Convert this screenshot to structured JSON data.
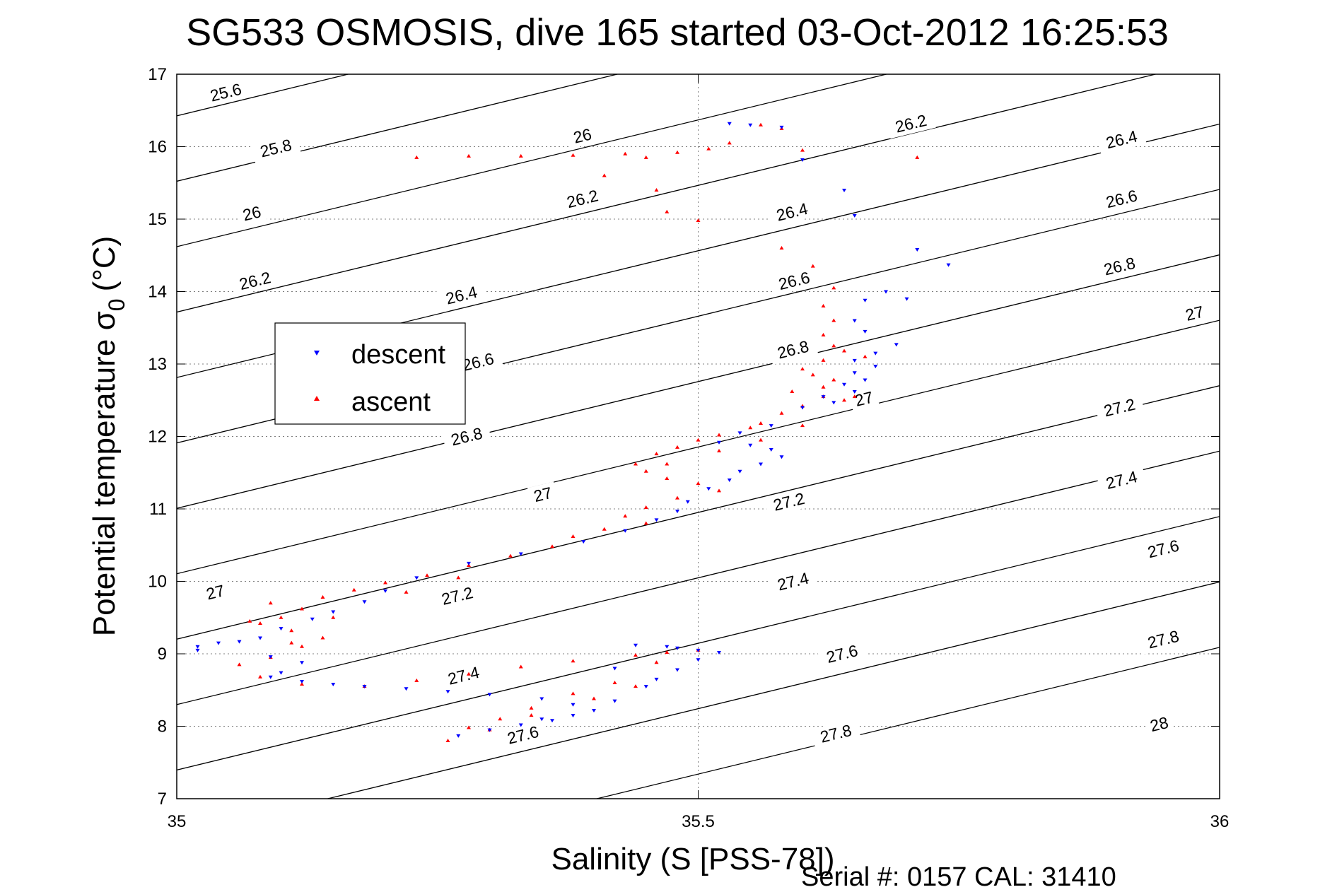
{
  "figure": {
    "title": "SG533 OSMOSIS, dive 165 started 03-Oct-2012 16:25:53",
    "footer": "Serial #: 0157  CAL: 31410"
  },
  "colors": {
    "descent": "#0000ff",
    "ascent": "#ff0000",
    "contour": "#000000",
    "grid": "#7f7f7f"
  },
  "chart_data": {
    "type": "scatter",
    "title": "SG533 OSMOSIS, dive 165 started 03-Oct-2012 16:25:53",
    "xlabel": "Salinity (S [PSS-78])",
    "ylabel": "Potential temperature σ",
    "ylabel_subscript": "0",
    "ylabel_unit": "(°C)",
    "xlim": [
      35,
      36
    ],
    "ylim": [
      7,
      17
    ],
    "xticks": [
      35,
      35.5,
      36
    ],
    "xtick_labels": [
      "35",
      "35.5",
      "36"
    ],
    "yticks": [
      7,
      8,
      9,
      10,
      11,
      12,
      13,
      14,
      15,
      16,
      17
    ],
    "ytick_labels": [
      "7",
      "8",
      "9",
      "10",
      "11",
      "12",
      "13",
      "14",
      "15",
      "16",
      "17"
    ],
    "grid": "dotted, at major ticks",
    "legend": {
      "position": "left-middle",
      "entries": [
        "descent",
        "ascent"
      ]
    },
    "series": [
      {
        "name": "descent",
        "marker": "triangle-down",
        "color": "#0000ff",
        "points": [
          [
            35.53,
            16.32
          ],
          [
            35.55,
            16.3
          ],
          [
            35.58,
            16.27
          ],
          [
            35.6,
            15.82
          ],
          [
            35.64,
            15.4
          ],
          [
            35.65,
            15.05
          ],
          [
            35.71,
            14.58
          ],
          [
            35.74,
            14.37
          ],
          [
            35.68,
            14.0
          ],
          [
            35.66,
            13.88
          ],
          [
            35.7,
            13.9
          ],
          [
            35.65,
            13.6
          ],
          [
            35.66,
            13.45
          ],
          [
            35.69,
            13.27
          ],
          [
            35.67,
            13.15
          ],
          [
            35.65,
            13.05
          ],
          [
            35.67,
            12.97
          ],
          [
            35.65,
            12.88
          ],
          [
            35.66,
            12.78
          ],
          [
            35.64,
            12.72
          ],
          [
            35.65,
            12.62
          ],
          [
            35.62,
            12.55
          ],
          [
            35.63,
            12.47
          ],
          [
            35.6,
            12.4
          ],
          [
            35.57,
            12.15
          ],
          [
            35.54,
            12.05
          ],
          [
            35.52,
            11.92
          ],
          [
            35.55,
            11.88
          ],
          [
            35.57,
            11.82
          ],
          [
            35.58,
            11.72
          ],
          [
            35.56,
            11.62
          ],
          [
            35.54,
            11.52
          ],
          [
            35.53,
            11.4
          ],
          [
            35.51,
            11.28
          ],
          [
            35.49,
            11.1
          ],
          [
            35.48,
            10.97
          ],
          [
            35.46,
            10.85
          ],
          [
            35.43,
            10.7
          ],
          [
            35.39,
            10.55
          ],
          [
            35.33,
            10.38
          ],
          [
            35.28,
            10.25
          ],
          [
            35.23,
            10.05
          ],
          [
            35.2,
            9.87
          ],
          [
            35.18,
            9.72
          ],
          [
            35.15,
            9.58
          ],
          [
            35.13,
            9.48
          ],
          [
            35.1,
            9.35
          ],
          [
            35.08,
            9.22
          ],
          [
            35.04,
            9.15
          ],
          [
            35.02,
            9.05
          ],
          [
            35.02,
            9.1
          ],
          [
            35.06,
            9.17
          ],
          [
            35.09,
            8.96
          ],
          [
            35.12,
            8.88
          ],
          [
            35.1,
            8.74
          ],
          [
            35.09,
            8.68
          ],
          [
            35.12,
            8.62
          ],
          [
            35.15,
            8.58
          ],
          [
            35.18,
            8.55
          ],
          [
            35.22,
            8.52
          ],
          [
            35.26,
            8.48
          ],
          [
            35.3,
            8.44
          ],
          [
            35.35,
            8.38
          ],
          [
            35.38,
            8.3
          ],
          [
            35.4,
            8.22
          ],
          [
            35.38,
            8.15
          ],
          [
            35.36,
            8.08
          ],
          [
            35.33,
            8.02
          ],
          [
            35.3,
            7.95
          ],
          [
            35.27,
            7.87
          ],
          [
            35.35,
            8.1
          ],
          [
            35.42,
            8.35
          ],
          [
            35.45,
            8.55
          ],
          [
            35.48,
            8.78
          ],
          [
            35.5,
            8.92
          ],
          [
            35.52,
            9.02
          ],
          [
            35.48,
            9.08
          ],
          [
            35.44,
            9.12
          ],
          [
            35.47,
            9.1
          ],
          [
            35.5,
            9.05
          ],
          [
            35.42,
            8.8
          ],
          [
            35.46,
            8.65
          ]
        ]
      },
      {
        "name": "ascent",
        "marker": "triangle-up",
        "color": "#ff0000",
        "points": [
          [
            35.56,
            16.3
          ],
          [
            35.58,
            16.25
          ],
          [
            35.53,
            16.05
          ],
          [
            35.51,
            15.97
          ],
          [
            35.48,
            15.92
          ],
          [
            35.43,
            15.9
          ],
          [
            35.38,
            15.88
          ],
          [
            35.33,
            15.87
          ],
          [
            35.28,
            15.87
          ],
          [
            35.23,
            15.85
          ],
          [
            35.45,
            15.85
          ],
          [
            35.41,
            15.6
          ],
          [
            35.46,
            15.4
          ],
          [
            35.47,
            15.1
          ],
          [
            35.5,
            14.98
          ],
          [
            35.6,
            15.95
          ],
          [
            35.71,
            15.85
          ],
          [
            35.58,
            14.6
          ],
          [
            35.61,
            14.35
          ],
          [
            35.63,
            14.05
          ],
          [
            35.62,
            13.8
          ],
          [
            35.63,
            13.6
          ],
          [
            35.62,
            13.4
          ],
          [
            35.63,
            13.25
          ],
          [
            35.64,
            13.18
          ],
          [
            35.62,
            13.05
          ],
          [
            35.6,
            12.93
          ],
          [
            35.61,
            12.85
          ],
          [
            35.63,
            12.78
          ],
          [
            35.62,
            12.68
          ],
          [
            35.59,
            12.62
          ],
          [
            35.62,
            12.55
          ],
          [
            35.64,
            12.5
          ],
          [
            35.6,
            12.42
          ],
          [
            35.58,
            12.32
          ],
          [
            35.56,
            12.18
          ],
          [
            35.55,
            12.12
          ],
          [
            35.52,
            12.02
          ],
          [
            35.5,
            11.95
          ],
          [
            35.48,
            11.85
          ],
          [
            35.46,
            11.76
          ],
          [
            35.47,
            11.62
          ],
          [
            35.45,
            11.52
          ],
          [
            35.47,
            11.42
          ],
          [
            35.5,
            11.35
          ],
          [
            35.52,
            11.25
          ],
          [
            35.48,
            11.15
          ],
          [
            35.45,
            11.02
          ],
          [
            35.43,
            10.9
          ],
          [
            35.45,
            10.8
          ],
          [
            35.41,
            10.72
          ],
          [
            35.38,
            10.62
          ],
          [
            35.36,
            10.48
          ],
          [
            35.32,
            10.35
          ],
          [
            35.28,
            10.22
          ],
          [
            35.24,
            10.08
          ],
          [
            35.2,
            9.98
          ],
          [
            35.17,
            9.88
          ],
          [
            35.14,
            9.78
          ],
          [
            35.12,
            9.62
          ],
          [
            35.1,
            9.5
          ],
          [
            35.08,
            9.42
          ],
          [
            35.11,
            9.32
          ],
          [
            35.14,
            9.22
          ],
          [
            35.12,
            9.1
          ],
          [
            35.09,
            8.95
          ],
          [
            35.06,
            8.85
          ],
          [
            35.08,
            8.68
          ],
          [
            35.12,
            8.58
          ],
          [
            35.18,
            8.55
          ],
          [
            35.23,
            8.63
          ],
          [
            35.28,
            8.72
          ],
          [
            35.33,
            8.82
          ],
          [
            35.38,
            8.9
          ],
          [
            35.44,
            8.98
          ],
          [
            35.47,
            9.02
          ],
          [
            35.5,
            9.05
          ],
          [
            35.46,
            8.88
          ],
          [
            35.42,
            8.6
          ],
          [
            35.38,
            8.45
          ],
          [
            35.34,
            8.25
          ],
          [
            35.31,
            8.1
          ],
          [
            35.28,
            7.98
          ],
          [
            35.26,
            7.8
          ],
          [
            35.3,
            7.95
          ],
          [
            35.34,
            8.15
          ],
          [
            35.4,
            8.38
          ],
          [
            35.44,
            8.55
          ],
          [
            35.44,
            11.62
          ],
          [
            35.52,
            11.8
          ],
          [
            35.56,
            11.95
          ],
          [
            35.6,
            12.15
          ],
          [
            35.65,
            12.55
          ],
          [
            35.66,
            13.1
          ],
          [
            35.09,
            9.7
          ],
          [
            35.15,
            9.5
          ],
          [
            35.11,
            9.15
          ],
          [
            35.07,
            9.45
          ],
          [
            35.27,
            10.05
          ],
          [
            35.22,
            9.85
          ]
        ]
      }
    ],
    "contours": {
      "type": "sigma0 isopycnals",
      "levels": [
        25.6,
        25.8,
        26,
        26.2,
        26.4,
        26.6,
        26.8,
        27,
        27.2,
        27.4,
        27.6,
        27.8,
        28
      ],
      "labels": [
        {
          "text": "25.6",
          "x": 35.047,
          "y": 16.75
        },
        {
          "text": "25.8",
          "x": 35.095,
          "y": 15.98
        },
        {
          "text": "26",
          "x": 35.072,
          "y": 15.08
        },
        {
          "text": "26.2",
          "x": 35.075,
          "y": 14.15
        },
        {
          "text": "26",
          "x": 35.389,
          "y": 16.15
        },
        {
          "text": "26.2",
          "x": 35.389,
          "y": 15.28
        },
        {
          "text": "26.4",
          "x": 35.273,
          "y": 13.95
        },
        {
          "text": "26.6",
          "x": 35.289,
          "y": 13.03
        },
        {
          "text": "26.8",
          "x": 35.278,
          "y": 12.0
        },
        {
          "text": "27",
          "x": 35.351,
          "y": 11.2
        },
        {
          "text": "27",
          "x": 35.037,
          "y": 9.85
        },
        {
          "text": "27.2",
          "x": 35.269,
          "y": 9.8
        },
        {
          "text": "27.4",
          "x": 35.275,
          "y": 8.7
        },
        {
          "text": "27.6",
          "x": 35.332,
          "y": 7.88
        },
        {
          "text": "26.2",
          "x": 35.704,
          "y": 16.32
        },
        {
          "text": "26.4",
          "x": 35.59,
          "y": 15.1
        },
        {
          "text": "26.6",
          "x": 35.592,
          "y": 14.15
        },
        {
          "text": "26.8",
          "x": 35.591,
          "y": 13.2
        },
        {
          "text": "27",
          "x": 35.659,
          "y": 12.52
        },
        {
          "text": "27.2",
          "x": 35.587,
          "y": 11.1
        },
        {
          "text": "27.4",
          "x": 35.591,
          "y": 10.0
        },
        {
          "text": "27.6",
          "x": 35.638,
          "y": 9.0
        },
        {
          "text": "27.8",
          "x": 35.632,
          "y": 7.9
        },
        {
          "text": "26.4",
          "x": 35.906,
          "y": 16.1
        },
        {
          "text": "26.6",
          "x": 35.906,
          "y": 15.28
        },
        {
          "text": "26.8",
          "x": 35.904,
          "y": 14.35
        },
        {
          "text": "27",
          "x": 35.976,
          "y": 13.7
        },
        {
          "text": "27.2",
          "x": 35.904,
          "y": 12.4
        },
        {
          "text": "27.4",
          "x": 35.906,
          "y": 11.4
        },
        {
          "text": "27.6",
          "x": 35.946,
          "y": 10.45
        },
        {
          "text": "27.8",
          "x": 35.946,
          "y": 9.2
        },
        {
          "text": "28",
          "x": 35.942,
          "y": 8.03
        }
      ]
    }
  }
}
